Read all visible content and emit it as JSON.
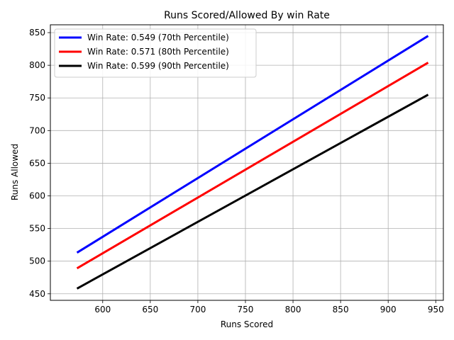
{
  "chart_data": {
    "type": "line",
    "title": "Runs Scored/Allowed By win Rate",
    "xlabel": "Runs Scored",
    "ylabel": "Runs Allowed",
    "xlim": [
      545,
      958
    ],
    "ylim": [
      440,
      862
    ],
    "xticks": [
      600,
      650,
      700,
      750,
      800,
      850,
      900,
      950
    ],
    "yticks": [
      450,
      500,
      550,
      600,
      650,
      700,
      750,
      800,
      850
    ],
    "grid": true,
    "legend_position": "top-left",
    "series": [
      {
        "name": "Win Rate: 0.549 (70th Percentile)",
        "color": "#0000ff",
        "x": [
          573,
          942
        ],
        "y": [
          513,
          845
        ]
      },
      {
        "name": "Win Rate: 0.571 (80th Percentile)",
        "color": "#ff0000",
        "x": [
          573,
          942
        ],
        "y": [
          489,
          804
        ]
      },
      {
        "name": "Win Rate: 0.599 (90th Percentile)",
        "color": "#000000",
        "x": [
          573,
          942
        ],
        "y": [
          458,
          755
        ]
      }
    ]
  }
}
